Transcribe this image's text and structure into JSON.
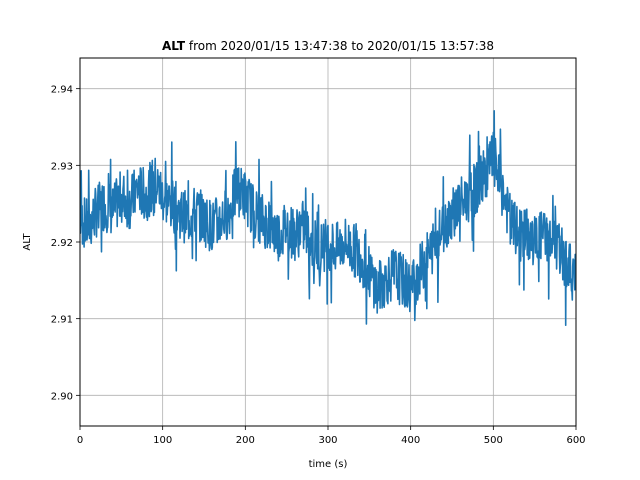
{
  "chart_data": {
    "type": "line",
    "title_bold": "ALT",
    "title_rest": " from 2020/01/15 13:47:38 to 2020/01/15 13:57:38",
    "xlabel": "time (s)",
    "ylabel": "ALT",
    "xlim": [
      0,
      600
    ],
    "ylim": [
      2.896,
      2.944
    ],
    "xticks": [
      0,
      100,
      200,
      300,
      400,
      500,
      600
    ],
    "xtick_labels": [
      "0",
      "100",
      "200",
      "300",
      "400",
      "500",
      "600"
    ],
    "yticks": [
      2.9,
      2.91,
      2.92,
      2.93,
      2.94
    ],
    "ytick_labels": [
      "2.90",
      "2.91",
      "2.92",
      "2.93",
      "2.94"
    ],
    "grid": true,
    "line_color": "#1f77b4",
    "series": [
      {
        "x": [
          0,
          10,
          20,
          30,
          40,
          50,
          60,
          70,
          80,
          90,
          100,
          110,
          120,
          130,
          140,
          150,
          160,
          170,
          180,
          190,
          200,
          210,
          220,
          230,
          240,
          250,
          260,
          270,
          280,
          290,
          300,
          310,
          320,
          330,
          340,
          350,
          360,
          370,
          380,
          390,
          400,
          410,
          420,
          430,
          440,
          450,
          460,
          470,
          480,
          490,
          500,
          510,
          520,
          530,
          540,
          550,
          560,
          570,
          580,
          590,
          600
        ],
        "y": [
          2.923,
          2.922,
          2.924,
          2.925,
          2.924,
          2.926,
          2.925,
          2.927,
          2.926,
          2.928,
          2.926,
          2.925,
          2.924,
          2.923,
          2.924,
          2.923,
          2.922,
          2.923,
          2.924,
          2.927,
          2.926,
          2.924,
          2.923,
          2.922,
          2.921,
          2.922,
          2.921,
          2.922,
          2.92,
          2.919,
          2.92,
          2.919,
          2.92,
          2.919,
          2.918,
          2.916,
          2.914,
          2.915,
          2.916,
          2.915,
          2.914,
          2.916,
          2.918,
          2.92,
          2.922,
          2.924,
          2.925,
          2.926,
          2.927,
          2.929,
          2.931,
          2.927,
          2.923,
          2.921,
          2.921,
          2.92,
          2.921,
          2.92,
          2.919,
          2.917,
          2.915
        ]
      }
    ]
  }
}
